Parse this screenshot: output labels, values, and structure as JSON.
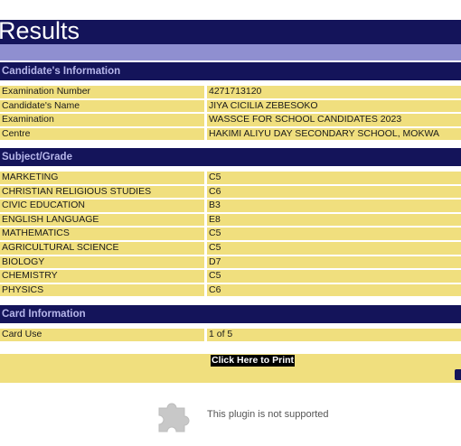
{
  "header": {
    "title": "Results"
  },
  "candidate": {
    "heading": "Candidate's Information",
    "rows": [
      {
        "label": "Examination Number",
        "value": "4271713120"
      },
      {
        "label": "Candidate's Name",
        "value": "JIYA CICILIA ZEBESOKO"
      },
      {
        "label": "Examination",
        "value": "WASSCE FOR SCHOOL CANDIDATES 2023"
      },
      {
        "label": "Centre",
        "value": "HAKIMI ALIYU DAY SECONDARY SCHOOL, MOKWA"
      }
    ]
  },
  "subjects": {
    "heading": "Subject/Grade",
    "rows": [
      {
        "label": "MARKETING",
        "value": "C5"
      },
      {
        "label": "CHRISTIAN RELIGIOUS STUDIES",
        "value": "C6"
      },
      {
        "label": "CIVIC EDUCATION",
        "value": "B3"
      },
      {
        "label": "ENGLISH LANGUAGE",
        "value": "E8"
      },
      {
        "label": "MATHEMATICS",
        "value": "C5"
      },
      {
        "label": "AGRICULTURAL SCIENCE",
        "value": "C5"
      },
      {
        "label": "BIOLOGY",
        "value": "D7"
      },
      {
        "label": "CHEMISTRY",
        "value": "C5"
      },
      {
        "label": "PHYSICS",
        "value": "C6"
      }
    ]
  },
  "card": {
    "heading": "Card Information",
    "rows": [
      {
        "label": "Card Use",
        "value": "1 of 5"
      }
    ]
  },
  "actions": {
    "print_label": "Click Here to Print"
  },
  "plugin": {
    "icon": "puzzle-piece-icon",
    "message": "This plugin is not supported"
  },
  "colors": {
    "navy": "#14145a",
    "lavender": "#8f8fd0",
    "row_yellow": "#f0df7e",
    "heading_text": "#b6b6ea"
  }
}
